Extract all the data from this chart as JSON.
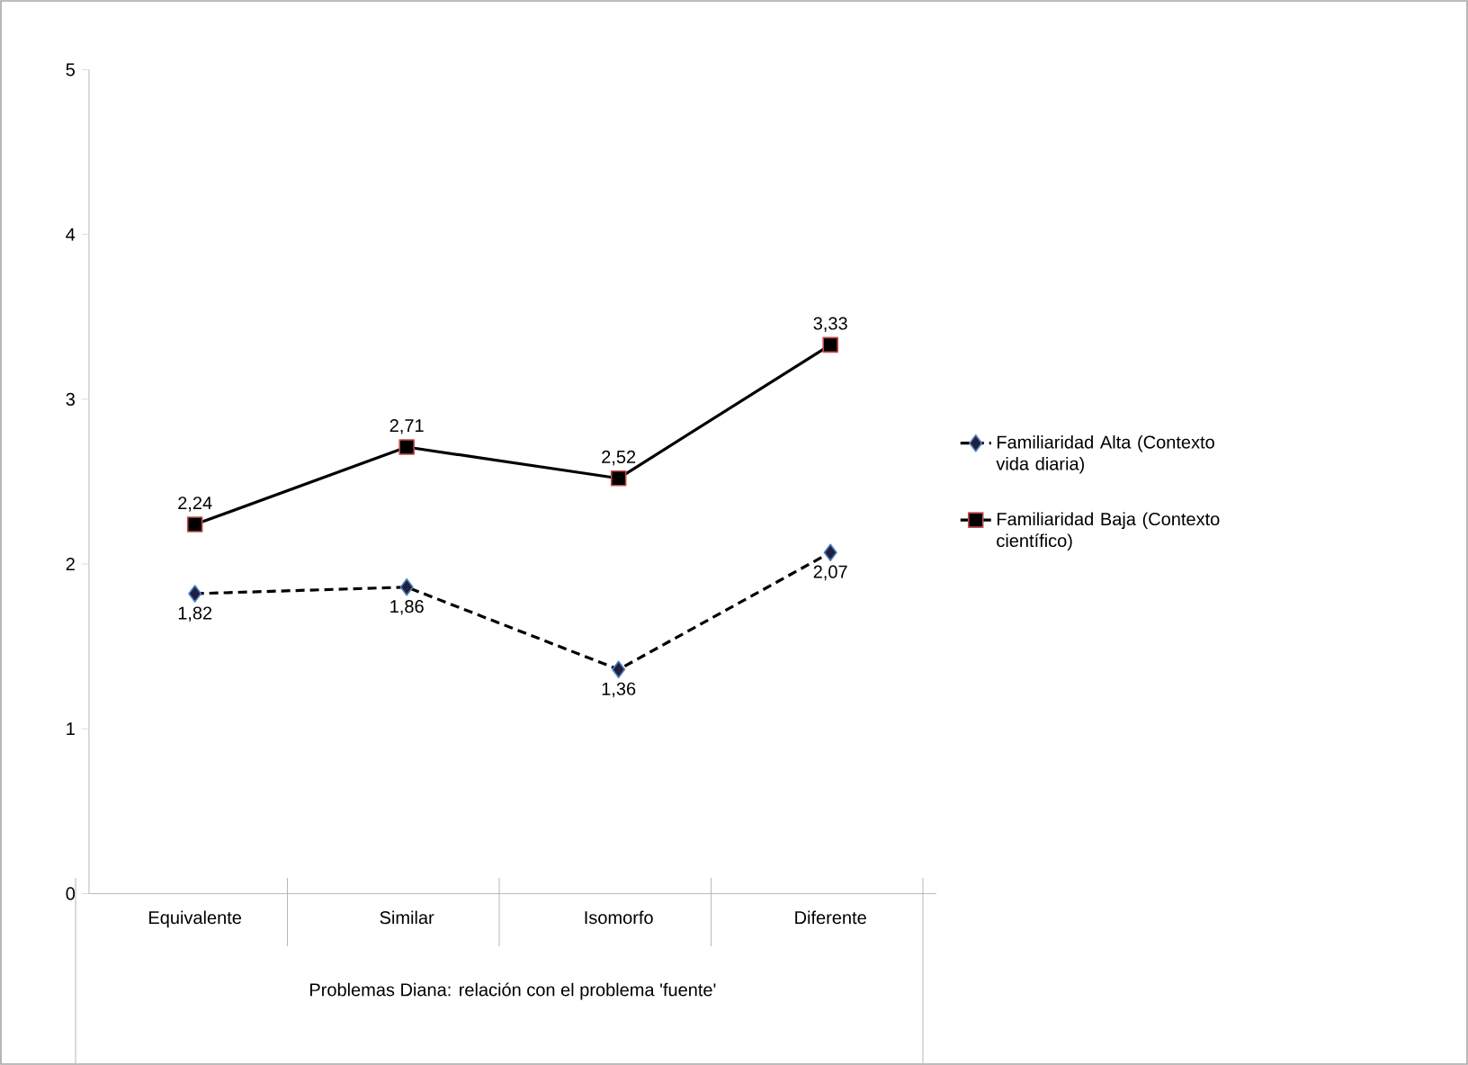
{
  "chart_data": {
    "type": "line",
    "xlabel": "Problemas Diana: relación con el problema 'fuente'",
    "categories": [
      "Equivalente",
      "Similar",
      "Isomorfo",
      "Diferente"
    ],
    "series": [
      {
        "name": "Familiaridad Alta (Contexto vida diaria)",
        "color": "#000000",
        "values": [
          1.82,
          1.86,
          1.36,
          2.07
        ],
        "value_labels": [
          "1,82",
          "1,86",
          "1,36",
          "2,07"
        ],
        "marker": "diamond",
        "line_style": "dashed"
      },
      {
        "name": "Familiaridad Baja (Contexto científico)",
        "color": "#000000",
        "values": [
          2.24,
          2.71,
          2.52,
          3.33
        ],
        "value_labels": [
          "2,24",
          "2,71",
          "2,52",
          "3,33"
        ],
        "marker": "square",
        "line_style": "solid"
      }
    ],
    "ylim": [
      0,
      5
    ],
    "yticks": [
      0,
      1,
      2,
      3,
      4,
      5
    ],
    "legend": "right",
    "grid": false
  }
}
